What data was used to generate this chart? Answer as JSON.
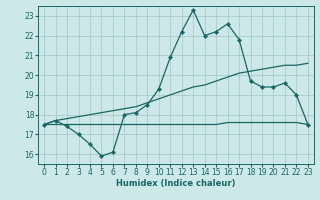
{
  "xlabel": "Humidex (Indice chaleur)",
  "xlim": [
    -0.5,
    23.5
  ],
  "ylim": [
    15.5,
    23.5
  ],
  "yticks": [
    16,
    17,
    18,
    19,
    20,
    21,
    22,
    23
  ],
  "xticks": [
    0,
    1,
    2,
    3,
    4,
    5,
    6,
    7,
    8,
    9,
    10,
    11,
    12,
    13,
    14,
    15,
    16,
    17,
    18,
    19,
    20,
    21,
    22,
    23
  ],
  "bg_color": "#cce8e8",
  "grid_color": "#aacccc",
  "line_color": "#1a6666",
  "main_x": [
    0,
    1,
    2,
    3,
    4,
    5,
    6,
    7,
    8,
    9,
    10,
    11,
    12,
    13,
    14,
    15,
    16,
    17,
    18,
    19,
    20,
    21,
    22,
    23
  ],
  "main_y": [
    17.5,
    17.7,
    17.4,
    17.0,
    16.5,
    15.9,
    16.1,
    18.0,
    18.1,
    18.5,
    19.3,
    20.9,
    22.2,
    23.3,
    22.0,
    22.2,
    22.6,
    21.8,
    19.7,
    19.4,
    19.4,
    19.6,
    19.0,
    17.5
  ],
  "upper_x": [
    0,
    1,
    2,
    3,
    4,
    5,
    6,
    7,
    8,
    9,
    10,
    11,
    12,
    13,
    14,
    15,
    16,
    17,
    18,
    19,
    20,
    21,
    22,
    23
  ],
  "upper_y": [
    17.5,
    17.7,
    17.8,
    17.9,
    18.0,
    18.1,
    18.2,
    18.3,
    18.4,
    18.6,
    18.8,
    19.0,
    19.2,
    19.4,
    19.5,
    19.7,
    19.9,
    20.1,
    20.2,
    20.3,
    20.4,
    20.5,
    20.5,
    20.6
  ],
  "lower_x": [
    0,
    1,
    2,
    3,
    4,
    5,
    6,
    7,
    8,
    9,
    10,
    11,
    12,
    13,
    14,
    15,
    16,
    17,
    18,
    19,
    20,
    21,
    22,
    23
  ],
  "lower_y": [
    17.5,
    17.5,
    17.5,
    17.5,
    17.5,
    17.5,
    17.5,
    17.5,
    17.5,
    17.5,
    17.5,
    17.5,
    17.5,
    17.5,
    17.5,
    17.5,
    17.6,
    17.6,
    17.6,
    17.6,
    17.6,
    17.6,
    17.6,
    17.5
  ]
}
